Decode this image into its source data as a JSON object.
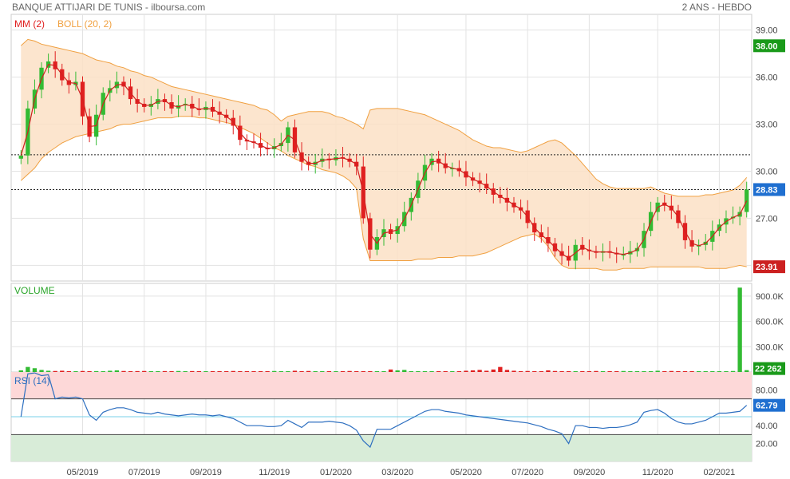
{
  "header": {
    "title": "BANQUE ATTIJARI DE TUNIS - ilboursa.com",
    "period": "2 ANS - HEBDO"
  },
  "chart_data": [
    {
      "type": "candlestick",
      "legend": [
        {
          "label": "MM (2)",
          "color": "#e02020"
        },
        {
          "label": "BOLL (20, 2)",
          "color": "#f0a040"
        }
      ],
      "ylim": [
        23.0,
        40.0
      ],
      "yticks": [
        24,
        27,
        30,
        33,
        36,
        39
      ],
      "ytick_labels": [
        "24.00",
        "27.00",
        "30.00",
        "33.00",
        "36.00",
        "39.00"
      ],
      "xtick_labels": [
        "05/2019",
        "07/2019",
        "09/2019",
        "11/2019",
        "01/2020",
        "03/2020",
        "05/2020",
        "07/2020",
        "09/2020",
        "11/2020",
        "02/2021"
      ],
      "xtick_index": [
        9,
        18,
        27,
        37,
        46,
        55,
        65,
        74,
        83,
        93,
        102
      ],
      "ref_lines": [
        31.05,
        28.83
      ],
      "badges": [
        {
          "text": "38.00",
          "value": 38.0,
          "color": "#1a9a1a"
        },
        {
          "text": "28.83",
          "value": 28.83,
          "color": "#1f6fd0"
        },
        {
          "text": "23.91",
          "value": 23.91,
          "color": "#cc2020"
        }
      ],
      "closes": [
        31.0,
        34.0,
        35.2,
        36.6,
        37.0,
        36.5,
        35.8,
        35.5,
        35.7,
        33.5,
        32.2,
        33.6,
        35.0,
        35.3,
        35.7,
        35.4,
        34.6,
        34.3,
        34.1,
        34.3,
        34.6,
        34.4,
        34.0,
        34.2,
        34.3,
        34.0,
        33.9,
        34.1,
        33.8,
        33.6,
        33.4,
        32.9,
        32.0,
        31.9,
        31.8,
        31.5,
        31.4,
        31.6,
        31.8,
        32.8,
        31.2,
        30.6,
        30.4,
        30.6,
        30.8,
        30.7,
        30.9,
        30.8,
        30.6,
        30.3,
        27.0,
        25.0,
        25.8,
        26.3,
        26.0,
        26.5,
        27.4,
        28.3,
        29.4,
        30.4,
        30.8,
        30.5,
        30.2,
        30.2,
        30.0,
        29.6,
        29.4,
        29.2,
        28.9,
        28.5,
        28.3,
        28.0,
        27.7,
        27.5,
        26.7,
        26.1,
        25.8,
        25.4,
        24.9,
        24.6,
        24.3,
        25.3,
        25.0,
        24.9,
        24.8,
        24.9,
        24.8,
        24.7,
        24.7,
        24.9,
        25.1,
        26.2,
        27.4,
        28.0,
        27.8,
        27.5,
        26.7,
        25.6,
        25.2,
        25.3,
        25.5,
        26.2,
        26.6,
        27.0,
        27.1,
        27.4,
        28.83
      ],
      "opens": [
        30.8,
        31.0,
        34.0,
        35.2,
        36.6,
        37.0,
        36.5,
        35.8,
        35.5,
        35.7,
        33.5,
        32.2,
        33.6,
        35.0,
        35.3,
        35.7,
        35.4,
        34.6,
        34.3,
        34.1,
        34.3,
        34.6,
        34.4,
        34.0,
        34.2,
        34.3,
        34.0,
        33.9,
        34.1,
        33.8,
        33.6,
        33.4,
        32.9,
        32.0,
        31.9,
        31.8,
        31.5,
        31.4,
        31.6,
        31.8,
        32.8,
        31.2,
        30.6,
        30.4,
        30.6,
        30.8,
        30.7,
        30.9,
        30.8,
        30.6,
        30.3,
        27.0,
        25.0,
        25.8,
        26.3,
        26.0,
        26.5,
        27.4,
        28.3,
        29.4,
        30.4,
        30.8,
        30.5,
        30.2,
        30.2,
        30.0,
        29.6,
        29.4,
        29.2,
        28.9,
        28.5,
        28.3,
        28.0,
        27.7,
        27.5,
        26.7,
        26.1,
        25.8,
        25.4,
        24.9,
        24.6,
        24.3,
        25.3,
        25.0,
        24.9,
        24.8,
        24.9,
        24.8,
        24.7,
        24.7,
        24.9,
        25.1,
        26.2,
        27.4,
        28.0,
        27.8,
        27.5,
        26.7,
        25.6,
        25.2,
        25.3,
        25.5,
        26.2,
        26.6,
        27.0,
        27.1,
        27.4
      ],
      "boll_upper": [
        38.0,
        38.4,
        38.3,
        38.1,
        38.0,
        37.9,
        37.8,
        37.7,
        37.6,
        37.5,
        37.3,
        37.1,
        37.0,
        36.9,
        36.7,
        36.6,
        36.4,
        36.3,
        36.1,
        36.0,
        35.8,
        35.6,
        35.4,
        35.3,
        35.2,
        35.1,
        35.0,
        34.9,
        34.8,
        34.7,
        34.6,
        34.5,
        34.4,
        34.3,
        34.2,
        34.0,
        33.9,
        33.6,
        33.2,
        33.5,
        33.6,
        33.7,
        33.8,
        33.8,
        33.8,
        33.7,
        33.5,
        33.4,
        33.2,
        33.0,
        32.7,
        33.9,
        34.0,
        34.0,
        34.0,
        34.0,
        33.9,
        33.8,
        33.7,
        33.6,
        33.4,
        33.2,
        33.0,
        32.8,
        32.6,
        32.3,
        32.0,
        31.8,
        31.6,
        31.5,
        31.5,
        31.4,
        31.3,
        31.2,
        31.3,
        31.5,
        31.7,
        31.9,
        32.0,
        31.8,
        31.4,
        31.0,
        30.5,
        30.0,
        29.5,
        29.2,
        29.0,
        28.9,
        28.9,
        28.9,
        28.9,
        28.9,
        29.0,
        28.8,
        28.6,
        28.5,
        28.4,
        28.4,
        28.4,
        28.4,
        28.5,
        28.5,
        28.6,
        28.7,
        28.8,
        29.1,
        29.6
      ],
      "boll_lower": [
        29.4,
        29.8,
        30.2,
        30.8,
        31.2,
        31.5,
        31.8,
        32.0,
        32.2,
        32.3,
        32.4,
        32.5,
        32.6,
        32.7,
        32.9,
        33.0,
        33.0,
        33.1,
        33.2,
        33.3,
        33.4,
        33.4,
        33.4,
        33.5,
        33.5,
        33.5,
        33.4,
        33.4,
        33.3,
        33.2,
        33.1,
        33.0,
        32.8,
        32.6,
        32.4,
        32.1,
        31.8,
        31.5,
        31.3,
        31.0,
        30.8,
        30.6,
        30.4,
        30.3,
        30.1,
        30.0,
        29.9,
        29.7,
        29.4,
        28.9,
        25.7,
        24.3,
        24.3,
        24.3,
        24.3,
        24.3,
        24.3,
        24.3,
        24.4,
        24.4,
        24.4,
        24.5,
        24.5,
        24.5,
        24.6,
        24.6,
        24.6,
        24.7,
        24.8,
        25.0,
        25.2,
        25.4,
        25.6,
        25.8,
        25.9,
        26.0,
        25.7,
        25.2,
        24.5,
        24.0,
        23.8,
        23.8,
        23.8,
        23.8,
        23.8,
        23.7,
        23.7,
        23.7,
        23.8,
        23.8,
        23.8,
        23.8,
        23.9,
        23.9,
        23.9,
        23.9,
        23.9,
        23.9,
        23.9,
        23.9,
        23.8,
        23.8,
        23.8,
        23.8,
        23.9,
        24.0,
        23.91
      ]
    },
    {
      "type": "bar",
      "label": "VOLUME",
      "ylim": [
        0,
        1050000
      ],
      "yticks": [
        300000,
        600000,
        900000
      ],
      "ytick_labels": [
        "300.0K",
        "600.0K",
        "900.0K"
      ],
      "badge": {
        "text": "22 262",
        "value": 22262,
        "color": "#1a9a1a"
      },
      "spike": {
        "index": 105,
        "value": 1000000
      },
      "values": [
        20000,
        60000,
        45000,
        25000,
        15000,
        12000,
        15000,
        10000,
        10000,
        12000,
        10000,
        11000,
        10000,
        15000,
        20000,
        12000,
        10000,
        11000,
        12000,
        10000,
        10000,
        11000,
        10000,
        12000,
        10000,
        11000,
        10000,
        10000,
        10000,
        10000,
        10000,
        12000,
        10000,
        10000,
        10000,
        10000,
        10000,
        12000,
        10000,
        10000,
        15000,
        10000,
        12000,
        10000,
        10000,
        10000,
        10000,
        10000,
        12000,
        10000,
        10000,
        10000,
        10000,
        10000,
        30000,
        20000,
        25000,
        10000,
        10000,
        10000,
        10000,
        10000,
        10000,
        10000,
        10000,
        15000,
        20000,
        25000,
        15000,
        30000,
        60000,
        25000,
        15000,
        10000,
        12000,
        10000,
        10000,
        20000,
        12000,
        10000,
        10000,
        10000,
        10000,
        10000,
        12000,
        10000,
        10000,
        10000,
        12000,
        10000,
        10000,
        10000,
        10000,
        15000,
        10000,
        12000,
        10000,
        10000,
        10000,
        10000,
        10000,
        10000,
        10000,
        10000,
        12000,
        1000000,
        22262
      ]
    },
    {
      "type": "line",
      "label": "RSI (14)",
      "ylim": [
        0,
        100
      ],
      "yticks": [
        20,
        40,
        80
      ],
      "ytick_labels": [
        "20.00",
        "40.00",
        "80.00"
      ],
      "overbought": 70,
      "oversold": 30,
      "badge": {
        "text": "62.79",
        "value": 62.79,
        "color": "#1f6fd0"
      },
      "values": [
        50,
        98,
        99,
        96,
        97,
        70,
        72,
        71,
        72,
        70,
        52,
        46,
        55,
        58,
        60,
        60,
        58,
        55,
        54,
        53,
        55,
        53,
        52,
        51,
        52,
        53,
        52,
        52,
        51,
        52,
        50,
        48,
        44,
        40,
        40,
        40,
        39,
        39,
        40,
        46,
        42,
        38,
        44,
        44,
        44,
        45,
        44,
        43,
        40,
        35,
        23,
        16,
        36,
        36,
        36,
        40,
        44,
        48,
        52,
        56,
        58,
        58,
        56,
        55,
        54,
        52,
        51,
        50,
        49,
        48,
        47,
        46,
        45,
        44,
        43,
        41,
        39,
        36,
        34,
        31,
        20,
        40,
        40,
        38,
        38,
        37,
        38,
        38,
        39,
        41,
        44,
        55,
        57,
        58,
        54,
        48,
        44,
        42,
        42,
        44,
        46,
        50,
        54,
        54,
        55,
        56,
        62.79
      ]
    }
  ]
}
